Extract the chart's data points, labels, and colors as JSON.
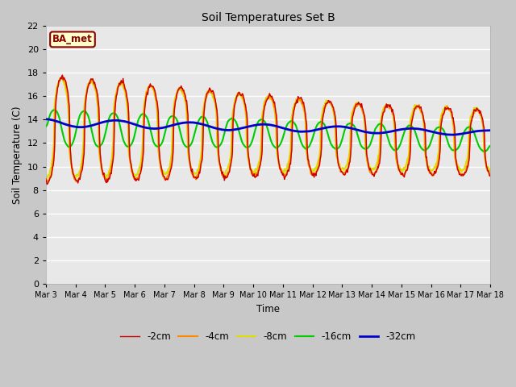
{
  "title": "Soil Temperatures Set B",
  "xlabel": "Time",
  "ylabel": "Soil Temperature (C)",
  "ylim": [
    0,
    22
  ],
  "yticks": [
    0,
    2,
    4,
    6,
    8,
    10,
    12,
    14,
    16,
    18,
    20,
    22
  ],
  "fig_bg_color": "#c8c8c8",
  "plot_bg_color": "#e8e8e8",
  "grid_color": "#ffffff",
  "annotation_text": "BA_met",
  "annotation_bg": "#ffffcc",
  "annotation_border": "#8b0000",
  "annotation_text_color": "#8b0000",
  "series_colors": {
    "-2cm": "#cc0000",
    "-4cm": "#ff8800",
    "-8cm": "#dddd00",
    "-16cm": "#00cc00",
    "-32cm": "#0000cc"
  },
  "series_lw": {
    "-2cm": 1.0,
    "-4cm": 1.5,
    "-8cm": 1.5,
    "-16cm": 1.5,
    "-32cm": 2.0
  },
  "legend_order": [
    "-2cm",
    "-4cm",
    "-8cm",
    "-16cm",
    "-32cm"
  ],
  "xtick_labels": [
    "Mar 3",
    "Mar 4",
    "Mar 5",
    "Mar 6",
    "Mar 7",
    "Mar 8",
    "Mar 9",
    "Mar 10",
    "Mar 11",
    "Mar 12",
    "Mar 13",
    "Mar 14",
    "Mar 15",
    "Mar 16",
    "Mar 17",
    "Mar 18"
  ]
}
